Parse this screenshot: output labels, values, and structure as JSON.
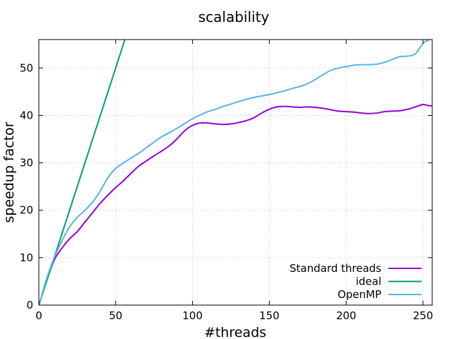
{
  "chart_data": {
    "type": "line",
    "title": "scalability",
    "xlabel": "#threads",
    "ylabel": "speedup factor",
    "xlim": [
      0,
      256
    ],
    "ylim": [
      0,
      56
    ],
    "xticks": [
      0,
      50,
      100,
      150,
      200,
      250
    ],
    "yticks": [
      0,
      10,
      20,
      30,
      40,
      50
    ],
    "grid": true,
    "legend_position": "bottom-right",
    "series": [
      {
        "name": "Standard threads",
        "color": "#9400d3",
        "x": [
          1,
          5,
          10,
          15,
          20,
          25,
          30,
          35,
          40,
          45,
          50,
          55,
          60,
          65,
          70,
          75,
          80,
          85,
          90,
          95,
          100,
          105,
          110,
          115,
          120,
          125,
          130,
          135,
          140,
          145,
          150,
          155,
          160,
          165,
          170,
          175,
          180,
          185,
          190,
          195,
          200,
          205,
          210,
          215,
          220,
          225,
          230,
          235,
          240,
          245,
          250,
          253,
          256
        ],
        "y": [
          1,
          5,
          9.5,
          12,
          14,
          15.5,
          17.5,
          19.5,
          21.5,
          23.2,
          24.8,
          26.2,
          27.8,
          29.3,
          30.4,
          31.5,
          32.5,
          33.6,
          35.1,
          36.8,
          37.9,
          38.4,
          38.4,
          38.2,
          38.1,
          38.2,
          38.5,
          38.9,
          39.5,
          40.5,
          41.3,
          41.8,
          41.9,
          41.8,
          41.7,
          41.8,
          41.7,
          41.5,
          41.2,
          40.9,
          40.8,
          40.7,
          40.5,
          40.4,
          40.5,
          40.8,
          40.9,
          41,
          41.3,
          41.8,
          42.3,
          42.1,
          42
        ]
      },
      {
        "name": "ideal",
        "color": "#009e73",
        "x": [
          0,
          56
        ],
        "y": [
          0,
          56
        ]
      },
      {
        "name": "OpenMP",
        "color": "#56b4e9",
        "x": [
          1,
          5,
          10,
          15,
          20,
          25,
          30,
          35,
          40,
          45,
          50,
          55,
          60,
          65,
          70,
          75,
          80,
          85,
          90,
          95,
          100,
          105,
          110,
          115,
          120,
          125,
          130,
          135,
          140,
          145,
          150,
          155,
          160,
          165,
          170,
          175,
          180,
          185,
          190,
          195,
          200,
          205,
          210,
          215,
          220,
          225,
          230,
          235,
          240,
          245,
          250,
          253,
          256
        ],
        "y": [
          1,
          5.5,
          10,
          13.5,
          16.5,
          18.5,
          20,
          21.7,
          24.1,
          26.9,
          28.8,
          30,
          31,
          32,
          33.2,
          34.4,
          35.5,
          36.4,
          37.3,
          38.3,
          39.3,
          40.1,
          40.8,
          41.3,
          41.9,
          42.4,
          42.9,
          43.4,
          43.8,
          44.1,
          44.4,
          44.8,
          45.2,
          45.7,
          46.1,
          46.7,
          47.6,
          48.6,
          49.5,
          50,
          50.3,
          50.6,
          50.7,
          50.7,
          50.8,
          51.2,
          51.8,
          52.4,
          52.5,
          53,
          55.2,
          55.8,
          56.2
        ]
      }
    ]
  }
}
